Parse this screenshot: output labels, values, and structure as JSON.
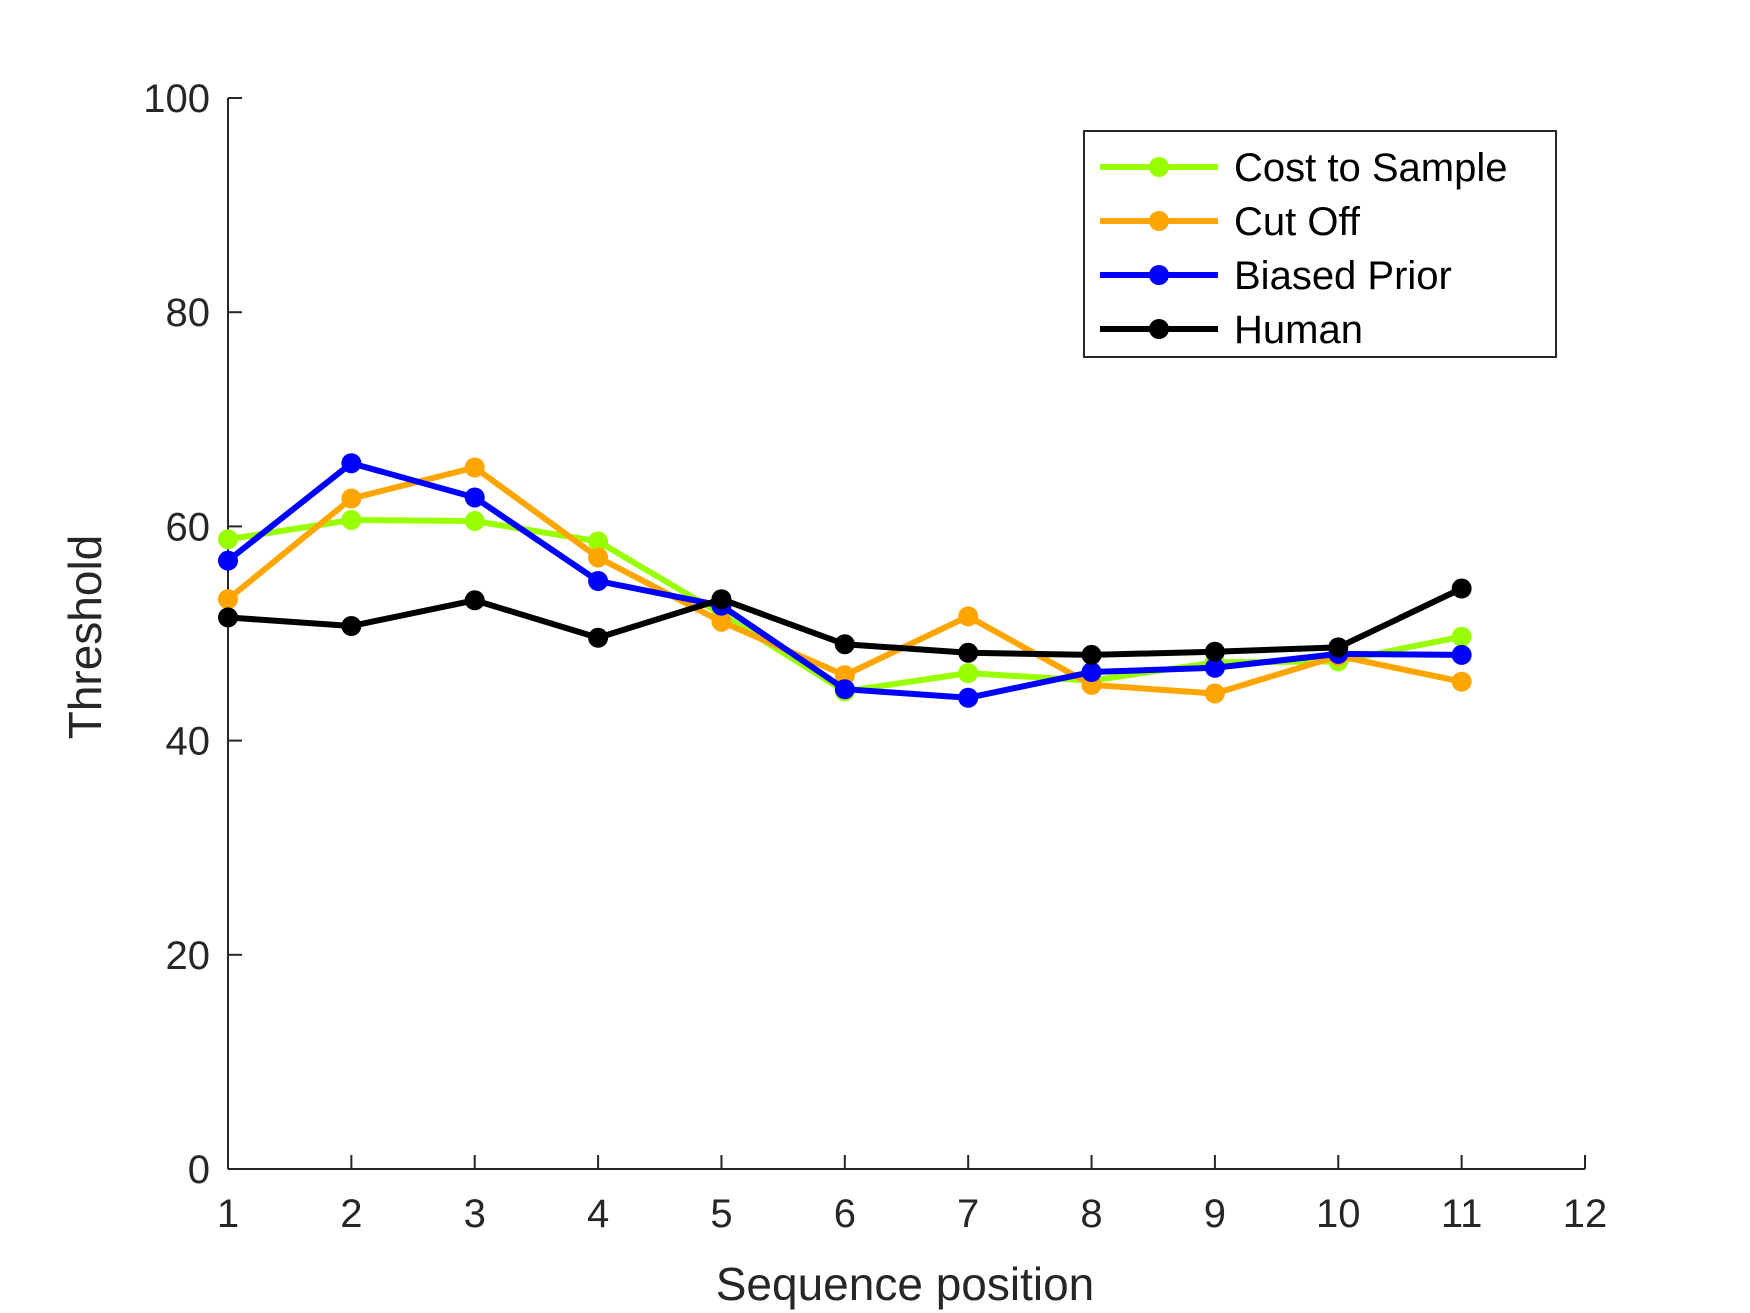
{
  "chart_data": {
    "type": "line",
    "title": "",
    "xlabel": "Sequence position",
    "ylabel": "Threshold",
    "xlim": [
      1,
      12
    ],
    "ylim": [
      0,
      100
    ],
    "xticks": [
      "1",
      "2",
      "3",
      "4",
      "5",
      "6",
      "7",
      "8",
      "9",
      "10",
      "11",
      "12"
    ],
    "yticks": [
      "0",
      "20",
      "40",
      "60",
      "80",
      "100"
    ],
    "grid": false,
    "legend_position": "top-right",
    "x": [
      1,
      2,
      3,
      4,
      5,
      6,
      7,
      8,
      9,
      10,
      11
    ],
    "series": [
      {
        "name": "Cost to Sample",
        "color": "#99ff00",
        "values": [
          58.8,
          60.6,
          60.5,
          58.6,
          51.8,
          44.6,
          46.3,
          45.6,
          47.3,
          47.4,
          49.7
        ]
      },
      {
        "name": "Cut Off",
        "color": "#ffa500",
        "values": [
          53.2,
          62.6,
          65.5,
          57.1,
          51.1,
          46.1,
          51.6,
          45.2,
          44.4,
          47.9,
          45.5
        ]
      },
      {
        "name": "Biased Prior",
        "color": "#0000ff",
        "values": [
          56.8,
          65.9,
          62.7,
          54.9,
          52.6,
          44.8,
          44.0,
          46.4,
          46.8,
          48.1,
          48.0
        ]
      },
      {
        "name": "Human",
        "color": "#000000",
        "values": [
          51.5,
          50.7,
          53.1,
          49.6,
          53.2,
          49.0,
          48.2,
          48.0,
          48.3,
          48.7,
          54.2
        ]
      }
    ]
  }
}
